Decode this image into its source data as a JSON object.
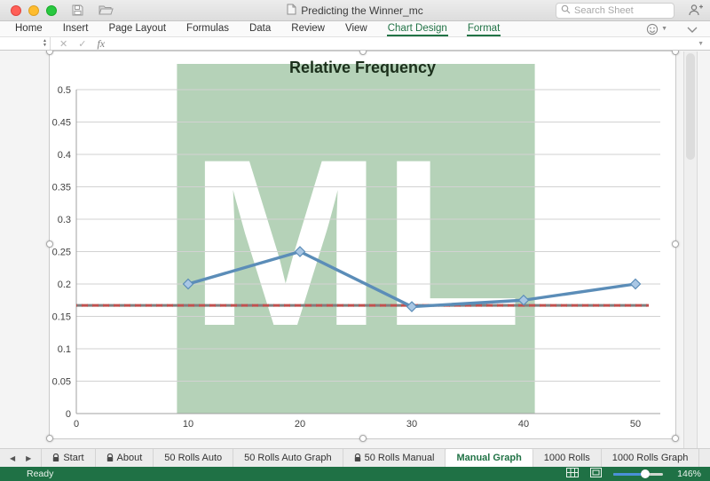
{
  "window": {
    "title": "Predicting the Winner_mc",
    "search_placeholder": "Search Sheet"
  },
  "ribbon": {
    "tabs": [
      {
        "label": "Home",
        "state": "normal"
      },
      {
        "label": "Insert",
        "state": "normal"
      },
      {
        "label": "Page Layout",
        "state": "normal"
      },
      {
        "label": "Formulas",
        "state": "normal"
      },
      {
        "label": "Data",
        "state": "normal"
      },
      {
        "label": "Review",
        "state": "normal"
      },
      {
        "label": "View",
        "state": "normal"
      },
      {
        "label": "Chart Design",
        "state": "green"
      },
      {
        "label": "Format",
        "state": "green"
      }
    ]
  },
  "formula_bar": {
    "name_box_value": "",
    "formula_value": "",
    "fx_label": "fx"
  },
  "icons": {
    "cancel": "✕",
    "enter": "✓",
    "stepper_up": "▲",
    "stepper_down": "▼",
    "caret_down": "▼",
    "tab_prev": "◀",
    "tab_next": "▶"
  },
  "chart_data": {
    "type": "line",
    "title": "Relative Frequency",
    "xlabel": "",
    "ylabel": "",
    "xlim": [
      0,
      52
    ],
    "ylim": [
      0,
      0.5
    ],
    "x_ticks": [
      "0",
      "10",
      "20",
      "30",
      "40",
      "50"
    ],
    "y_ticks": [
      "0",
      "0.05",
      "0.1",
      "0.15",
      "0.2",
      "0.25",
      "0.3",
      "0.35",
      "0.4",
      "0.45",
      "0.5"
    ],
    "grid": true,
    "legend": "none",
    "series": [
      {
        "kind": "line-markers",
        "marker": "diamond",
        "x": [
          10,
          20,
          30,
          40,
          50
        ],
        "y": [
          0.2,
          0.25,
          0.165,
          0.175,
          0.2
        ],
        "color": "#5b8db8",
        "marker_fill": "#a9c7e4"
      },
      {
        "kind": "reference-dashed",
        "y_const": 0.167,
        "color": "#c1504e",
        "alt_color": "#7f7f7f"
      }
    ],
    "watermark": {
      "text": "ML",
      "bg_color": "#b5d2b8",
      "text_color": "#ffffff",
      "x_span": [
        9,
        41
      ]
    }
  },
  "sheet_tabs": {
    "tabs": [
      {
        "label": "Start",
        "locked": true,
        "active": false
      },
      {
        "label": "About",
        "locked": true,
        "active": false
      },
      {
        "label": "50 Rolls Auto",
        "locked": false,
        "active": false
      },
      {
        "label": "50 Rolls Auto Graph",
        "locked": false,
        "active": false
      },
      {
        "label": "50 Rolls Manual",
        "locked": true,
        "active": false
      },
      {
        "label": "Manual Graph",
        "locked": false,
        "active": true
      },
      {
        "label": "1000 Rolls",
        "locked": false,
        "active": false
      },
      {
        "label": "1000 Rolls Graph",
        "locked": false,
        "active": false
      }
    ],
    "add_tab_label": "+"
  },
  "status_bar": {
    "ready_label": "Ready",
    "zoom_level": "146%"
  },
  "colors": {
    "excel_green": "#217346",
    "status_bar_green": "#1f7145",
    "chart_line_blue": "#5b8db8",
    "marker_fill": "#a9c7e4",
    "reference_red": "#c1504e",
    "reference_alt_gray": "#7f7f7f",
    "watermark_green": "#b5d2b8",
    "chart_title_text": "#1c301c",
    "gridline_gray": "#d2d2d2",
    "axis_gray": "#a0a0a0"
  }
}
